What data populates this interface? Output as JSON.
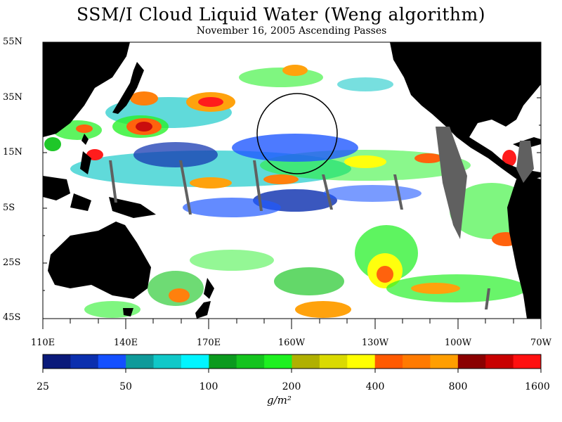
{
  "title": "SSM/I Cloud Liquid Water (Weng algorithm)",
  "subtitle": "November 16, 2005  Ascending Passes",
  "latitude_labels": [
    "55N",
    "35N",
    "15N",
    "5S",
    "25S",
    "45S"
  ],
  "longitude_labels": [
    "110E",
    "140E",
    "170E",
    "160W",
    "130W",
    "100W",
    "70W"
  ],
  "colorbar": {
    "tick_labels": [
      "25",
      "50",
      "100",
      "200",
      "400",
      "800",
      "1600"
    ],
    "units": "g/m²",
    "colors": [
      "#0a1a7a",
      "#0b2fae",
      "#1450ff",
      "#0f9a9a",
      "#10c8c8",
      "#00f5ff",
      "#0b9a1e",
      "#14c41e",
      "#1ef020",
      "#b0b000",
      "#dada00",
      "#ffff00",
      "#ff5a00",
      "#ff7a00",
      "#ff9e00",
      "#8a0000",
      "#c80000",
      "#ff1010"
    ]
  },
  "colors": {
    "land": "#000000",
    "no_data": "#606060",
    "clear": "#ffffff"
  }
}
